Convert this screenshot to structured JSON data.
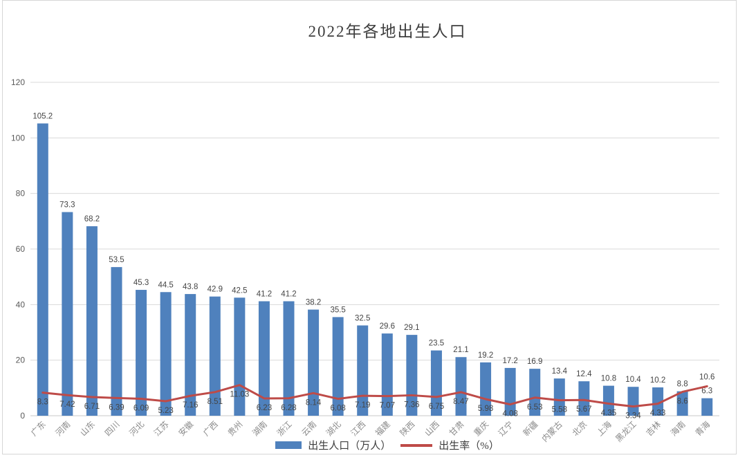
{
  "title": "2022年各地出生人口",
  "chart_data": {
    "type": "bar+line",
    "title": "2022年各地出生人口",
    "xlabel": "",
    "ylabel": "",
    "ylim": [
      0,
      120
    ],
    "yticks": [
      0,
      20,
      40,
      60,
      80,
      100,
      120
    ],
    "grid": true,
    "legend_position": "bottom",
    "categories": [
      "广东",
      "河南",
      "山东",
      "四川",
      "河北",
      "江苏",
      "安徽",
      "广西",
      "贵州",
      "湖南",
      "浙江",
      "云南",
      "湖北",
      "江西",
      "福建",
      "陕西",
      "山西",
      "甘肃",
      "重庆",
      "辽宁",
      "新疆",
      "内蒙古",
      "北京",
      "上海",
      "黑龙江",
      "吉林",
      "海南",
      "青海"
    ],
    "series": [
      {
        "name": "出生人口（万人）",
        "type": "bar",
        "color": "#4F81BD",
        "values": [
          105.2,
          73.3,
          68.2,
          53.5,
          45.3,
          44.5,
          43.8,
          42.9,
          42.5,
          41.2,
          41.2,
          38.2,
          35.5,
          32.5,
          29.6,
          29.1,
          23.5,
          21.1,
          19.2,
          17.2,
          16.9,
          13.4,
          12.4,
          10.8,
          10.4,
          10.2,
          8.8,
          6.3
        ]
      },
      {
        "name": "出生率（%）",
        "type": "line",
        "color": "#BE4B48",
        "values": [
          8.3,
          7.42,
          6.71,
          6.39,
          6.09,
          5.23,
          7.16,
          8.51,
          11.03,
          6.23,
          6.28,
          8.14,
          6.08,
          7.19,
          7.07,
          7.36,
          6.75,
          8.47,
          5.98,
          4.08,
          6.53,
          5.58,
          5.67,
          4.35,
          3.34,
          4.33,
          8.6,
          10.6
        ]
      }
    ]
  }
}
